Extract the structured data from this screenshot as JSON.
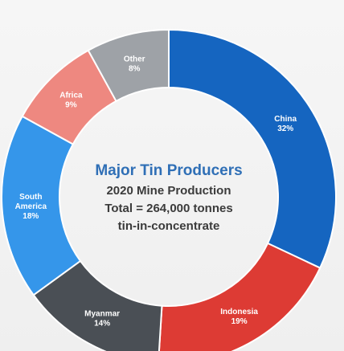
{
  "chart_data": {
    "type": "pie",
    "title": "Major Tin Producers",
    "subtitle_lines": [
      "2020 Mine Production",
      "Total = 264,000 tonnes",
      "tin-in-concentrate"
    ],
    "categories": [
      "China",
      "Indonesia",
      "Myanmar",
      "South America",
      "Africa",
      "Other"
    ],
    "label_lines": [
      [
        "China"
      ],
      [
        "Indonesia"
      ],
      [
        "Myanmar"
      ],
      [
        "South",
        "America"
      ],
      [
        "Africa"
      ],
      [
        "Other"
      ]
    ],
    "values": [
      32,
      19,
      14,
      18,
      9,
      8
    ],
    "value_labels": [
      "32%",
      "19%",
      "14%",
      "18%",
      "9%",
      "8%"
    ],
    "unit": "%",
    "colors": [
      "#1565c0",
      "#dd3b34",
      "#4a4f55",
      "#3596ea",
      "#ee8880",
      "#9ea2a7"
    ],
    "donut": true,
    "legend": "none"
  }
}
